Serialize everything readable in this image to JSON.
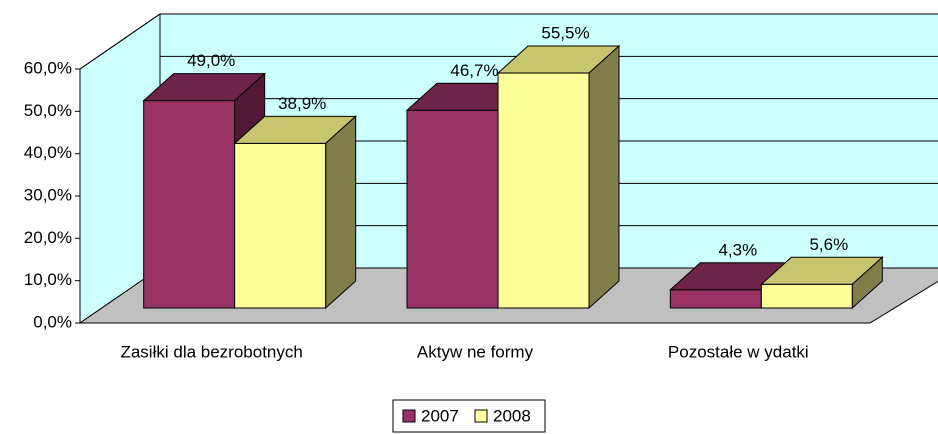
{
  "chart_data": {
    "type": "bar3d",
    "categories": [
      "Zasiłki dla bezrobotnych",
      "Aktyw ne formy",
      "Pozostałe w ydatki"
    ],
    "series": [
      {
        "name": "2007",
        "color": "#993366",
        "top_color": "#6e2449",
        "side_color": "#521a37",
        "values": [
          49.0,
          46.7,
          4.3
        ],
        "value_labels": [
          "49,0%",
          "46,7%",
          "4,3%"
        ]
      },
      {
        "name": "2008",
        "color": "#ffff99",
        "top_color": "#c9c46e",
        "side_color": "#807d4b",
        "values": [
          38.9,
          55.5,
          5.6
        ],
        "value_labels": [
          "38,9%",
          "55,5%",
          "5,6%"
        ]
      }
    ],
    "ylim": [
      0,
      60
    ],
    "yticks": [
      {
        "value": 0,
        "label": "0,0%"
      },
      {
        "value": 10,
        "label": "10,0%"
      },
      {
        "value": 20,
        "label": "20,0%"
      },
      {
        "value": 30,
        "label": "30,0%"
      },
      {
        "value": 40,
        "label": "40,0%"
      },
      {
        "value": 50,
        "label": "50,0%"
      },
      {
        "value": 60,
        "label": "60,0%"
      }
    ],
    "grid": true,
    "legend": "bottom",
    "wall_color": "#ccffff",
    "floor_color": "#c0c0c0"
  }
}
